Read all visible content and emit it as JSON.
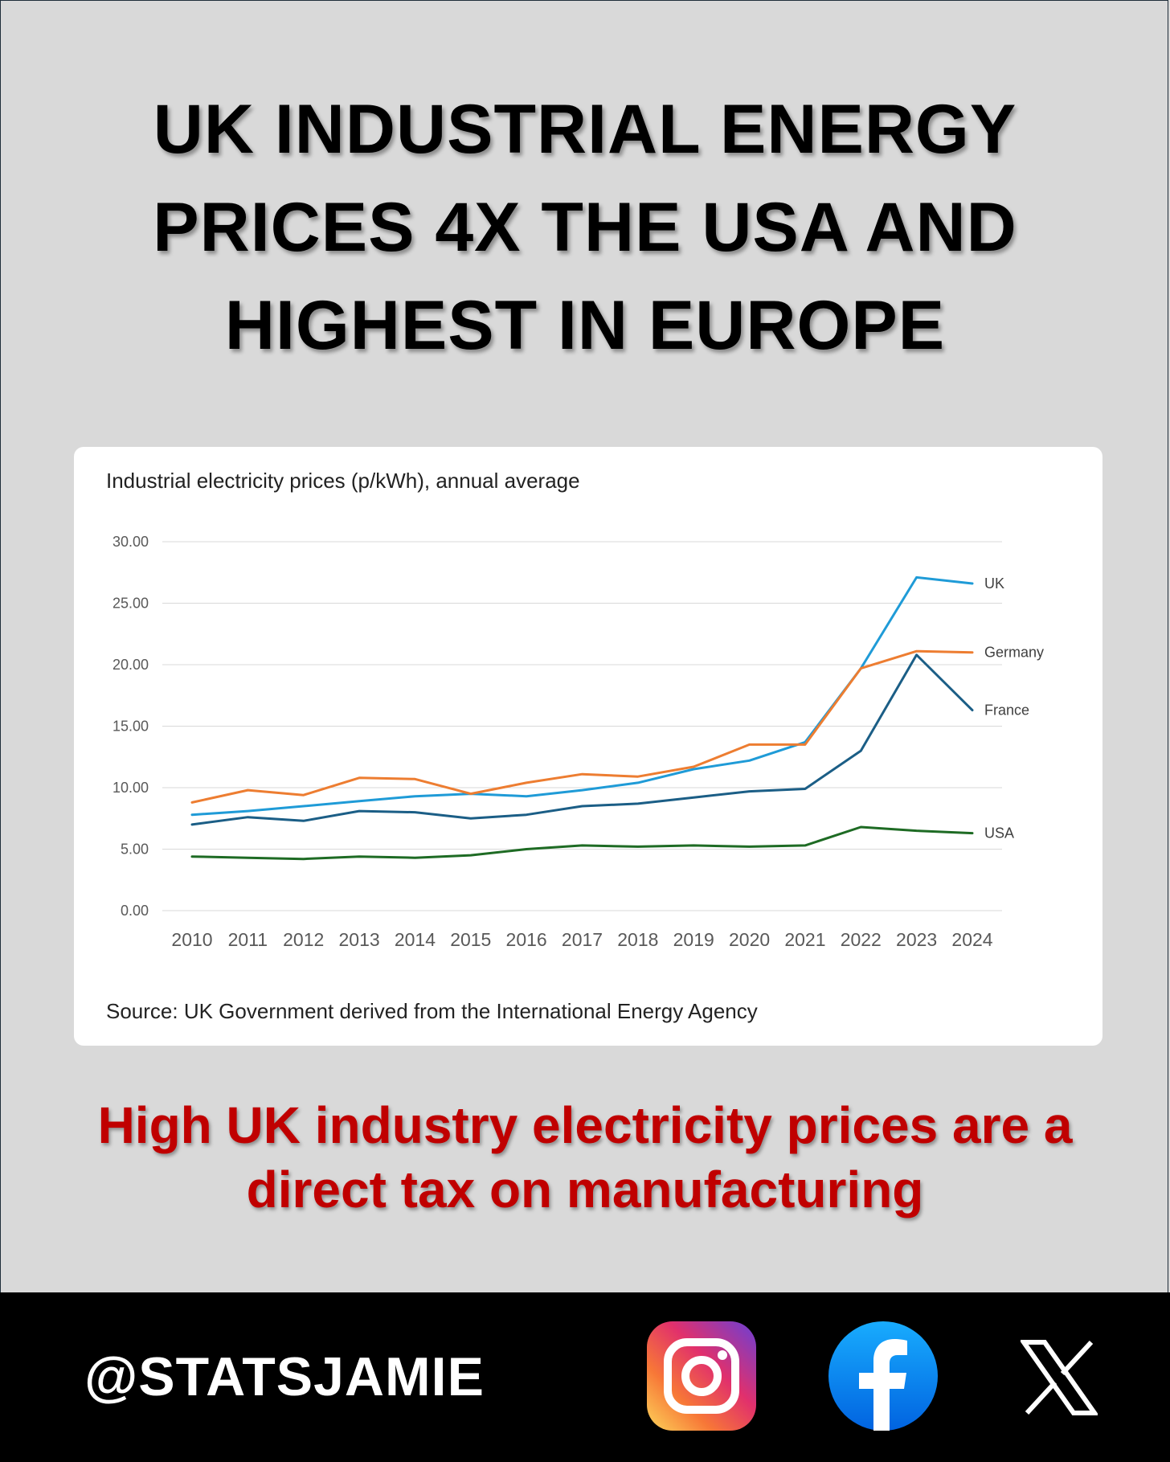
{
  "headline": {
    "line1": "UK INDUSTRIAL ENERGY",
    "line2": "PRICES 4X THE USA AND",
    "line3": "HIGHEST IN EUROPE"
  },
  "chart_data": {
    "type": "line",
    "title": "Industrial electricity prices (p/kWh), annual average",
    "source": "Source: UK Government derived from the International Energy Agency",
    "x": [
      "2010",
      "2011",
      "2012",
      "2013",
      "2014",
      "2015",
      "2016",
      "2017",
      "2018",
      "2019",
      "2020",
      "2021",
      "2022",
      "2023",
      "2024"
    ],
    "y_ticks": [
      "0.00",
      "5.00",
      "10.00",
      "15.00",
      "20.00",
      "25.00",
      "30.00"
    ],
    "ylim": [
      0,
      30
    ],
    "grid": true,
    "legend": "end-of-line labels",
    "series": [
      {
        "name": "UK",
        "color": "#1f9bd7",
        "values": [
          7.8,
          8.1,
          8.5,
          8.9,
          9.3,
          9.5,
          9.3,
          9.8,
          10.4,
          11.5,
          12.2,
          13.7,
          19.7,
          27.1,
          26.6
        ]
      },
      {
        "name": "Germany",
        "color": "#ed7d31",
        "values": [
          8.8,
          9.8,
          9.4,
          10.8,
          10.7,
          9.5,
          10.4,
          11.1,
          10.9,
          11.7,
          13.5,
          13.5,
          19.7,
          21.1,
          21.0
        ]
      },
      {
        "name": "France",
        "color": "#1b5e86",
        "values": [
          7.0,
          7.6,
          7.3,
          8.1,
          8.0,
          7.5,
          7.8,
          8.5,
          8.7,
          9.2,
          9.7,
          9.9,
          13.0,
          20.8,
          16.3
        ]
      },
      {
        "name": "USA",
        "color": "#1e6b24",
        "values": [
          4.4,
          4.3,
          4.2,
          4.4,
          4.3,
          4.5,
          5.0,
          5.3,
          5.2,
          5.3,
          5.2,
          5.3,
          6.8,
          6.5,
          6.3
        ]
      }
    ]
  },
  "tagline": {
    "line1": "High UK industry electricity prices are a",
    "line2": "direct tax on manufacturing"
  },
  "footer": {
    "handle": "@STATSJAMIE",
    "icons": [
      "instagram-icon",
      "facebook-icon",
      "x-icon"
    ]
  }
}
